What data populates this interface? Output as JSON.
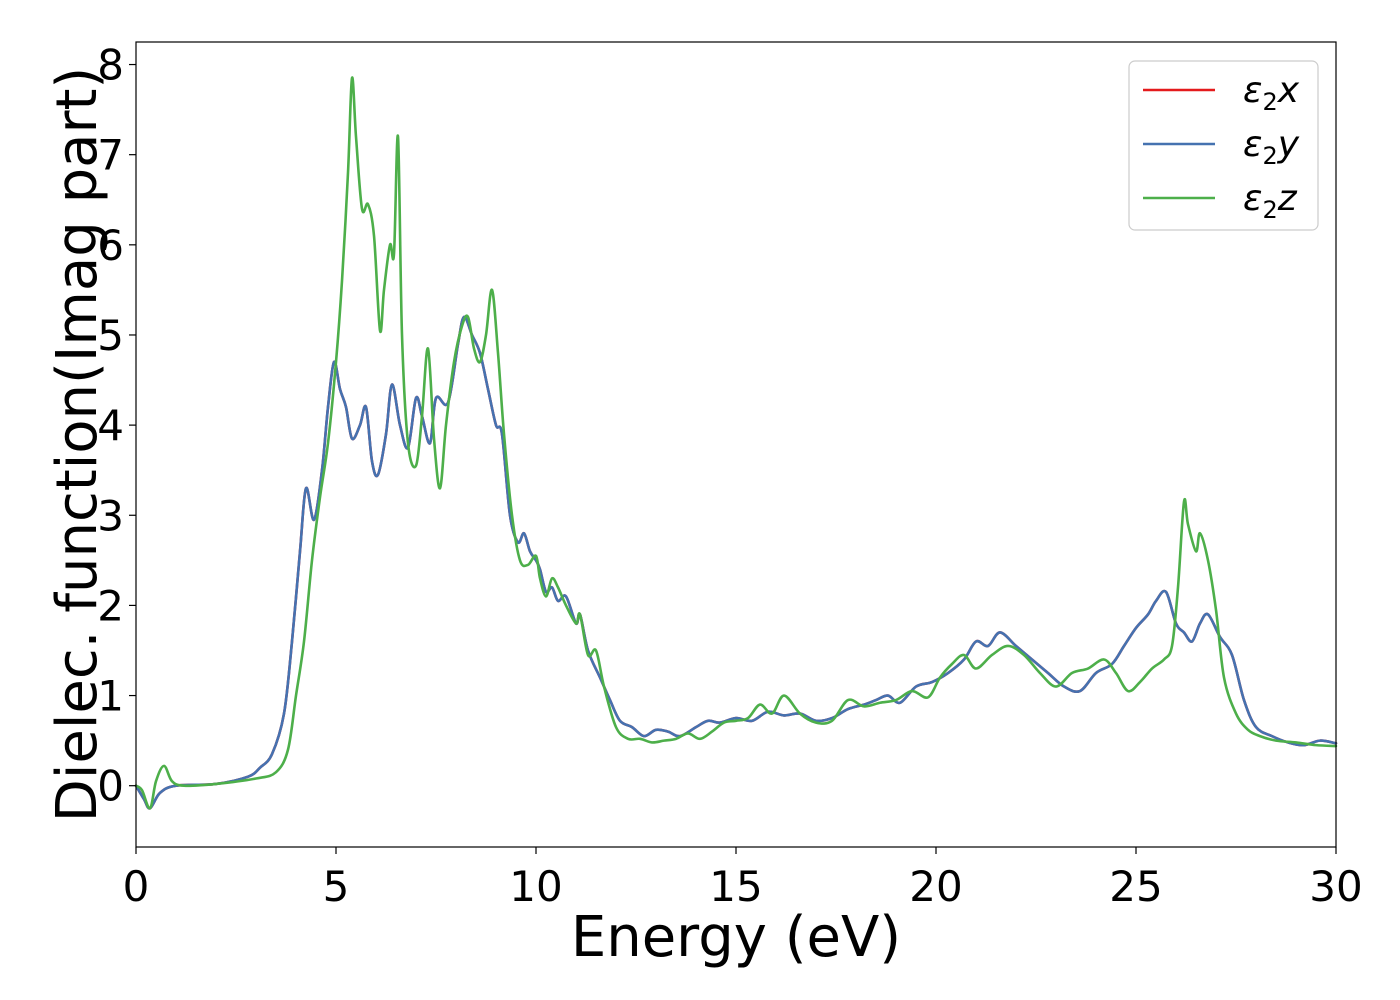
{
  "chart_data": {
    "type": "line",
    "xlabel": "Energy (eV)",
    "ylabel": "Dielec. function(Imag part)",
    "xlim": [
      0,
      30
    ],
    "ylim": [
      -0.68,
      8.25
    ],
    "xticks": [
      "0",
      "5",
      "10",
      "15",
      "20",
      "25",
      "30"
    ],
    "yticks": [
      "0",
      "1",
      "2",
      "3",
      "4",
      "5",
      "6",
      "7",
      "8"
    ],
    "grid": false,
    "legend_position": "top-right",
    "series": [
      {
        "name": "ε2x",
        "legend": {
          "base": "ε",
          "sub": "2",
          "suffix": "x"
        },
        "color": "#e41a1c",
        "x": [
          0,
          0.2,
          0.35,
          0.6,
          1,
          2,
          2.8,
          3.1,
          3.4,
          3.7,
          3.9,
          4.1,
          4.25,
          4.45,
          4.65,
          4.8,
          4.95,
          5.1,
          5.25,
          5.4,
          5.6,
          5.75,
          5.9,
          6.05,
          6.25,
          6.4,
          6.6,
          6.8,
          7.0,
          7.15,
          7.35,
          7.5,
          7.8,
          8.05,
          8.2,
          8.4,
          8.6,
          8.8,
          9.0,
          9.15,
          9.35,
          9.55,
          9.7,
          9.85,
          10.0,
          10.1,
          10.25,
          10.4,
          10.55,
          10.75,
          11.0,
          11.1,
          11.3,
          11.6,
          11.85,
          12.1,
          12.4,
          12.7,
          13.0,
          13.3,
          13.6,
          14.0,
          14.3,
          14.6,
          15.0,
          15.4,
          15.8,
          16.2,
          16.6,
          17.0,
          17.4,
          17.8,
          18.2,
          18.5,
          18.8,
          19.1,
          19.5,
          19.9,
          20.3,
          20.7,
          21.0,
          21.3,
          21.6,
          22.0,
          22.4,
          22.8,
          23.2,
          23.6,
          24.0,
          24.4,
          24.7,
          25.0,
          25.3,
          25.5,
          25.75,
          26.0,
          26.2,
          26.4,
          26.6,
          26.8,
          27.1,
          27.4,
          27.7,
          28.0,
          28.4,
          28.8,
          29.2,
          29.6,
          30.0
        ],
        "y": [
          0,
          -0.15,
          -0.25,
          -0.08,
          0,
          0.02,
          0.1,
          0.2,
          0.35,
          0.8,
          1.6,
          2.6,
          3.3,
          2.95,
          3.5,
          4.2,
          4.7,
          4.4,
          4.2,
          3.85,
          4.0,
          4.2,
          3.6,
          3.45,
          3.9,
          4.45,
          4.0,
          3.75,
          4.3,
          4.1,
          3.8,
          4.3,
          4.25,
          4.9,
          5.2,
          5.0,
          4.8,
          4.4,
          4.0,
          3.9,
          3.0,
          2.7,
          2.8,
          2.6,
          2.5,
          2.4,
          2.15,
          2.2,
          2.05,
          2.1,
          1.8,
          1.9,
          1.5,
          1.2,
          0.95,
          0.72,
          0.65,
          0.55,
          0.62,
          0.6,
          0.55,
          0.65,
          0.72,
          0.7,
          0.75,
          0.72,
          0.82,
          0.78,
          0.8,
          0.72,
          0.75,
          0.85,
          0.9,
          0.95,
          1.0,
          0.92,
          1.1,
          1.15,
          1.25,
          1.4,
          1.6,
          1.55,
          1.7,
          1.55,
          1.4,
          1.25,
          1.1,
          1.05,
          1.25,
          1.35,
          1.55,
          1.75,
          1.9,
          2.05,
          2.15,
          1.8,
          1.7,
          1.6,
          1.8,
          1.9,
          1.65,
          1.45,
          0.95,
          0.65,
          0.55,
          0.48,
          0.45,
          0.5,
          0.47
        ]
      },
      {
        "name": "ε2y",
        "legend": {
          "base": "ε",
          "sub": "2",
          "suffix": "y"
        },
        "color": "#4572b0",
        "x": [
          0,
          0.2,
          0.35,
          0.6,
          1,
          2,
          2.8,
          3.1,
          3.4,
          3.7,
          3.9,
          4.1,
          4.25,
          4.45,
          4.65,
          4.8,
          4.95,
          5.1,
          5.25,
          5.4,
          5.6,
          5.75,
          5.9,
          6.05,
          6.25,
          6.4,
          6.6,
          6.8,
          7.0,
          7.15,
          7.35,
          7.5,
          7.8,
          8.05,
          8.2,
          8.4,
          8.6,
          8.8,
          9.0,
          9.15,
          9.35,
          9.55,
          9.7,
          9.85,
          10.0,
          10.1,
          10.25,
          10.4,
          10.55,
          10.75,
          11.0,
          11.1,
          11.3,
          11.6,
          11.85,
          12.1,
          12.4,
          12.7,
          13.0,
          13.3,
          13.6,
          14.0,
          14.3,
          14.6,
          15.0,
          15.4,
          15.8,
          16.2,
          16.6,
          17.0,
          17.4,
          17.8,
          18.2,
          18.5,
          18.8,
          19.1,
          19.5,
          19.9,
          20.3,
          20.7,
          21.0,
          21.3,
          21.6,
          22.0,
          22.4,
          22.8,
          23.2,
          23.6,
          24.0,
          24.4,
          24.7,
          25.0,
          25.3,
          25.5,
          25.75,
          26.0,
          26.2,
          26.4,
          26.6,
          26.8,
          27.1,
          27.4,
          27.7,
          28.0,
          28.4,
          28.8,
          29.2,
          29.6,
          30.0
        ],
        "y": [
          0,
          -0.15,
          -0.25,
          -0.08,
          0,
          0.02,
          0.1,
          0.2,
          0.35,
          0.8,
          1.6,
          2.6,
          3.3,
          2.95,
          3.5,
          4.2,
          4.7,
          4.4,
          4.2,
          3.85,
          4.0,
          4.2,
          3.6,
          3.45,
          3.9,
          4.45,
          4.0,
          3.75,
          4.3,
          4.1,
          3.8,
          4.3,
          4.25,
          4.9,
          5.2,
          5.0,
          4.8,
          4.4,
          4.0,
          3.9,
          3.0,
          2.7,
          2.8,
          2.6,
          2.5,
          2.4,
          2.15,
          2.2,
          2.05,
          2.1,
          1.8,
          1.9,
          1.5,
          1.2,
          0.95,
          0.72,
          0.65,
          0.55,
          0.62,
          0.6,
          0.55,
          0.65,
          0.72,
          0.7,
          0.75,
          0.72,
          0.82,
          0.78,
          0.8,
          0.72,
          0.75,
          0.85,
          0.9,
          0.95,
          1.0,
          0.92,
          1.1,
          1.15,
          1.25,
          1.4,
          1.6,
          1.55,
          1.7,
          1.55,
          1.4,
          1.25,
          1.1,
          1.05,
          1.25,
          1.35,
          1.55,
          1.75,
          1.9,
          2.05,
          2.15,
          1.8,
          1.7,
          1.6,
          1.8,
          1.9,
          1.65,
          1.45,
          0.95,
          0.65,
          0.55,
          0.48,
          0.45,
          0.5,
          0.47
        ]
      },
      {
        "name": "ε2z",
        "legend": {
          "base": "ε",
          "sub": "2",
          "suffix": "z"
        },
        "color": "#4daf4a",
        "x": [
          0,
          0.15,
          0.35,
          0.5,
          0.7,
          0.9,
          1.2,
          2,
          3,
          3.5,
          3.8,
          4.0,
          4.2,
          4.4,
          4.6,
          4.8,
          5.0,
          5.15,
          5.3,
          5.4,
          5.5,
          5.65,
          5.8,
          5.95,
          6.1,
          6.2,
          6.35,
          6.45,
          6.55,
          6.65,
          6.8,
          7.0,
          7.15,
          7.3,
          7.45,
          7.6,
          7.75,
          7.95,
          8.15,
          8.3,
          8.45,
          8.6,
          8.75,
          8.9,
          9.05,
          9.2,
          9.4,
          9.6,
          9.8,
          10.0,
          10.1,
          10.25,
          10.4,
          10.55,
          10.75,
          11.0,
          11.1,
          11.3,
          11.5,
          11.7,
          12.0,
          12.3,
          12.6,
          12.9,
          13.2,
          13.5,
          13.8,
          14.1,
          14.4,
          14.7,
          15.0,
          15.3,
          15.6,
          15.9,
          16.2,
          16.6,
          17.0,
          17.4,
          17.8,
          18.2,
          18.6,
          19.0,
          19.4,
          19.8,
          20.1,
          20.4,
          20.7,
          21.0,
          21.4,
          21.8,
          22.2,
          22.6,
          23.0,
          23.4,
          23.8,
          24.2,
          24.5,
          24.8,
          25.1,
          25.4,
          25.7,
          25.9,
          26.05,
          26.2,
          26.3,
          26.5,
          26.6,
          26.8,
          27.0,
          27.2,
          27.5,
          27.8,
          28.1,
          28.5,
          29.0,
          29.5,
          30.0
        ],
        "y": [
          0,
          -0.05,
          -0.25,
          0.05,
          0.22,
          0.05,
          0,
          0.02,
          0.08,
          0.15,
          0.4,
          1.0,
          1.6,
          2.5,
          3.2,
          3.8,
          4.7,
          5.6,
          6.8,
          7.85,
          7.2,
          6.4,
          6.45,
          6.1,
          5.05,
          5.5,
          6.0,
          5.9,
          7.2,
          5.0,
          3.8,
          3.55,
          4.1,
          4.85,
          3.85,
          3.3,
          4.0,
          4.7,
          5.1,
          5.2,
          4.85,
          4.7,
          5.0,
          5.5,
          4.8,
          3.9,
          3.0,
          2.5,
          2.45,
          2.55,
          2.3,
          2.1,
          2.3,
          2.2,
          2.0,
          1.8,
          1.9,
          1.45,
          1.5,
          1.1,
          0.65,
          0.52,
          0.52,
          0.48,
          0.5,
          0.52,
          0.58,
          0.52,
          0.6,
          0.7,
          0.72,
          0.75,
          0.9,
          0.8,
          1.0,
          0.8,
          0.7,
          0.72,
          0.95,
          0.88,
          0.92,
          0.95,
          1.05,
          0.98,
          1.2,
          1.35,
          1.45,
          1.3,
          1.45,
          1.55,
          1.45,
          1.25,
          1.1,
          1.25,
          1.3,
          1.4,
          1.25,
          1.05,
          1.15,
          1.3,
          1.4,
          1.55,
          2.2,
          3.15,
          2.9,
          2.6,
          2.8,
          2.5,
          1.95,
          1.2,
          0.8,
          0.62,
          0.55,
          0.5,
          0.48,
          0.45,
          0.44
        ]
      }
    ]
  }
}
